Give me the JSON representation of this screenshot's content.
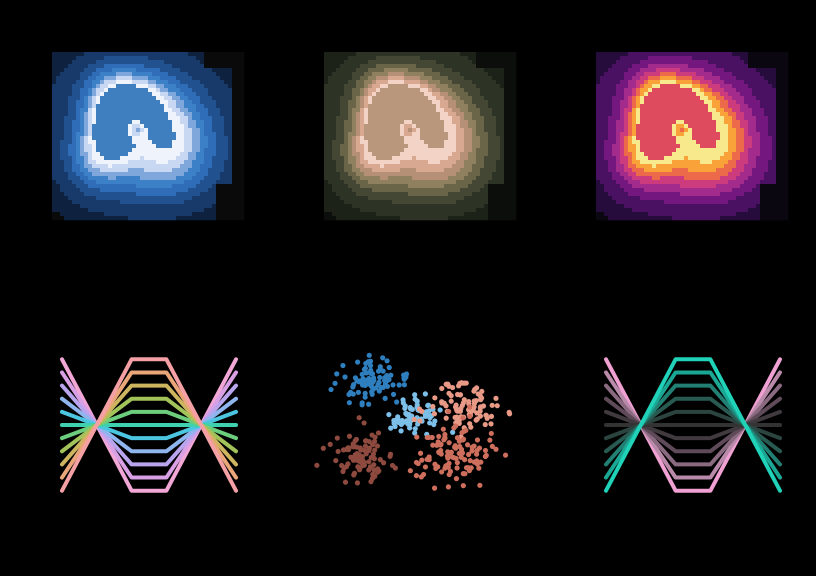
{
  "figure": {
    "background": "#000000"
  },
  "chart_data": [
    {
      "panel": "top-left",
      "type": "heatmap",
      "style": "filled density contours",
      "colormap": [
        "#0a0a0a",
        "#0e2240",
        "#173a6b",
        "#22518f",
        "#2f6db8",
        "#3c80c8",
        "#7fa7db",
        "#c8d8f2",
        "#eef3fc",
        "#3f7fc0"
      ],
      "levels": 9,
      "title": "",
      "xlabel": "",
      "ylabel": ""
    },
    {
      "panel": "top-middle",
      "type": "heatmap",
      "style": "filled density contours",
      "colormap": [
        "#0c0e0b",
        "#1d2218",
        "#2d3325",
        "#444733",
        "#6a6549",
        "#8f8060",
        "#b59077",
        "#d9a891",
        "#f4d3c7",
        "#b9977c"
      ],
      "levels": 9,
      "title": "",
      "xlabel": "",
      "ylabel": ""
    },
    {
      "panel": "top-right",
      "type": "heatmap",
      "style": "filled density contours",
      "colormap": [
        "#0b0710",
        "#260c3c",
        "#4a1062",
        "#74177f",
        "#a22b8b",
        "#cc3b7d",
        "#ec6a4a",
        "#f9a23a",
        "#f8ea8c",
        "#de4b5e"
      ],
      "levels": 9,
      "title": "",
      "xlabel": "",
      "ylabel": ""
    },
    {
      "panel": "bottom-left",
      "type": "line",
      "x": [
        0,
        1,
        2,
        3,
        4,
        5
      ],
      "line_width": 4,
      "series": [
        {
          "values": [
            4.5,
            0,
            -4.5,
            -4.5,
            0,
            4.5
          ],
          "color": "#f2a7d6"
        },
        {
          "values": [
            3.6,
            0,
            -3.6,
            -3.6,
            0,
            3.6
          ],
          "color": "#d9a0e6"
        },
        {
          "values": [
            2.7,
            0,
            -2.7,
            -2.7,
            0,
            2.7
          ],
          "color": "#b9a4ee"
        },
        {
          "values": [
            1.8,
            0,
            -1.8,
            -1.8,
            0,
            1.8
          ],
          "color": "#8fb5ee"
        },
        {
          "values": [
            0.9,
            0,
            -0.9,
            -0.9,
            0,
            0.9
          ],
          "color": "#4cc6e0"
        },
        {
          "values": [
            0,
            0,
            0,
            0,
            0,
            0
          ],
          "color": "#3fd0b0"
        },
        {
          "values": [
            -0.9,
            0,
            0.9,
            0.9,
            0,
            -0.9
          ],
          "color": "#6ccd7c"
        },
        {
          "values": [
            -1.8,
            0,
            1.8,
            1.8,
            0,
            -1.8
          ],
          "color": "#a2c35a"
        },
        {
          "values": [
            -2.7,
            0,
            2.7,
            2.7,
            0,
            -2.7
          ],
          "color": "#cdb55f"
        },
        {
          "values": [
            -3.6,
            0,
            3.6,
            3.6,
            0,
            -3.6
          ],
          "color": "#eaa679"
        },
        {
          "values": [
            -4.5,
            0,
            4.5,
            4.5,
            0,
            -4.5
          ],
          "color": "#f4a0a4"
        }
      ],
      "ylim": [
        -5,
        5
      ],
      "title": "",
      "xlabel": "",
      "ylabel": ""
    },
    {
      "panel": "bottom-middle",
      "type": "scatter",
      "marker_size": 2.6,
      "series": [
        {
          "color": "#2f7fbf",
          "center": [
            -1.6,
            1.5
          ],
          "spread": [
            0.55,
            0.45
          ],
          "n": 90
        },
        {
          "color": "#7cc0ea",
          "center": [
            -0.2,
            0.4
          ],
          "spread": [
            0.45,
            0.35
          ],
          "n": 70
        },
        {
          "color": "#e99a86",
          "center": [
            1.4,
            0.7
          ],
          "spread": [
            0.6,
            0.45
          ],
          "n": 90
        },
        {
          "color": "#ce6e5c",
          "center": [
            1.1,
            -1.0
          ],
          "spread": [
            0.65,
            0.55
          ],
          "n": 110
        },
        {
          "color": "#8e4a3e",
          "center": [
            -1.9,
            -1.2
          ],
          "spread": [
            0.5,
            0.5
          ],
          "n": 90
        }
      ],
      "xlim": [
        -3.5,
        3.5
      ],
      "ylim": [
        -3.3,
        3.3
      ],
      "title": "",
      "xlabel": "",
      "ylabel": ""
    },
    {
      "panel": "bottom-right",
      "type": "line",
      "x": [
        0,
        1,
        2,
        3,
        4,
        5
      ],
      "line_width": 4,
      "series": [
        {
          "values": [
            4.5,
            0,
            -4.5,
            -4.5,
            0,
            4.5
          ],
          "color": "#f0a0d2"
        },
        {
          "values": [
            3.6,
            0,
            -3.6,
            -3.6,
            0,
            3.6
          ],
          "color": "#b98aa9"
        },
        {
          "values": [
            2.7,
            0,
            -2.7,
            -2.7,
            0,
            2.7
          ],
          "color": "#8a6a80"
        },
        {
          "values": [
            1.8,
            0,
            -1.8,
            -1.8,
            0,
            1.8
          ],
          "color": "#5e4a58"
        },
        {
          "values": [
            0.9,
            0,
            -0.9,
            -0.9,
            0,
            0.9
          ],
          "color": "#40393e"
        },
        {
          "values": [
            0,
            0,
            0,
            0,
            0,
            0
          ],
          "color": "#333333"
        },
        {
          "values": [
            -0.9,
            0,
            0.9,
            0.9,
            0,
            -0.9
          ],
          "color": "#2c4440"
        },
        {
          "values": [
            -1.8,
            0,
            1.8,
            1.8,
            0,
            -1.8
          ],
          "color": "#285a52"
        },
        {
          "values": [
            -2.7,
            0,
            2.7,
            2.7,
            0,
            -2.7
          ],
          "color": "#218073"
        },
        {
          "values": [
            -3.6,
            0,
            3.6,
            3.6,
            0,
            -3.6
          ],
          "color": "#1aa895"
        },
        {
          "values": [
            -4.5,
            0,
            4.5,
            4.5,
            0,
            -4.5
          ],
          "color": "#1fd2b8"
        }
      ],
      "ylim": [
        -5,
        5
      ],
      "title": "",
      "xlabel": "",
      "ylabel": ""
    }
  ]
}
